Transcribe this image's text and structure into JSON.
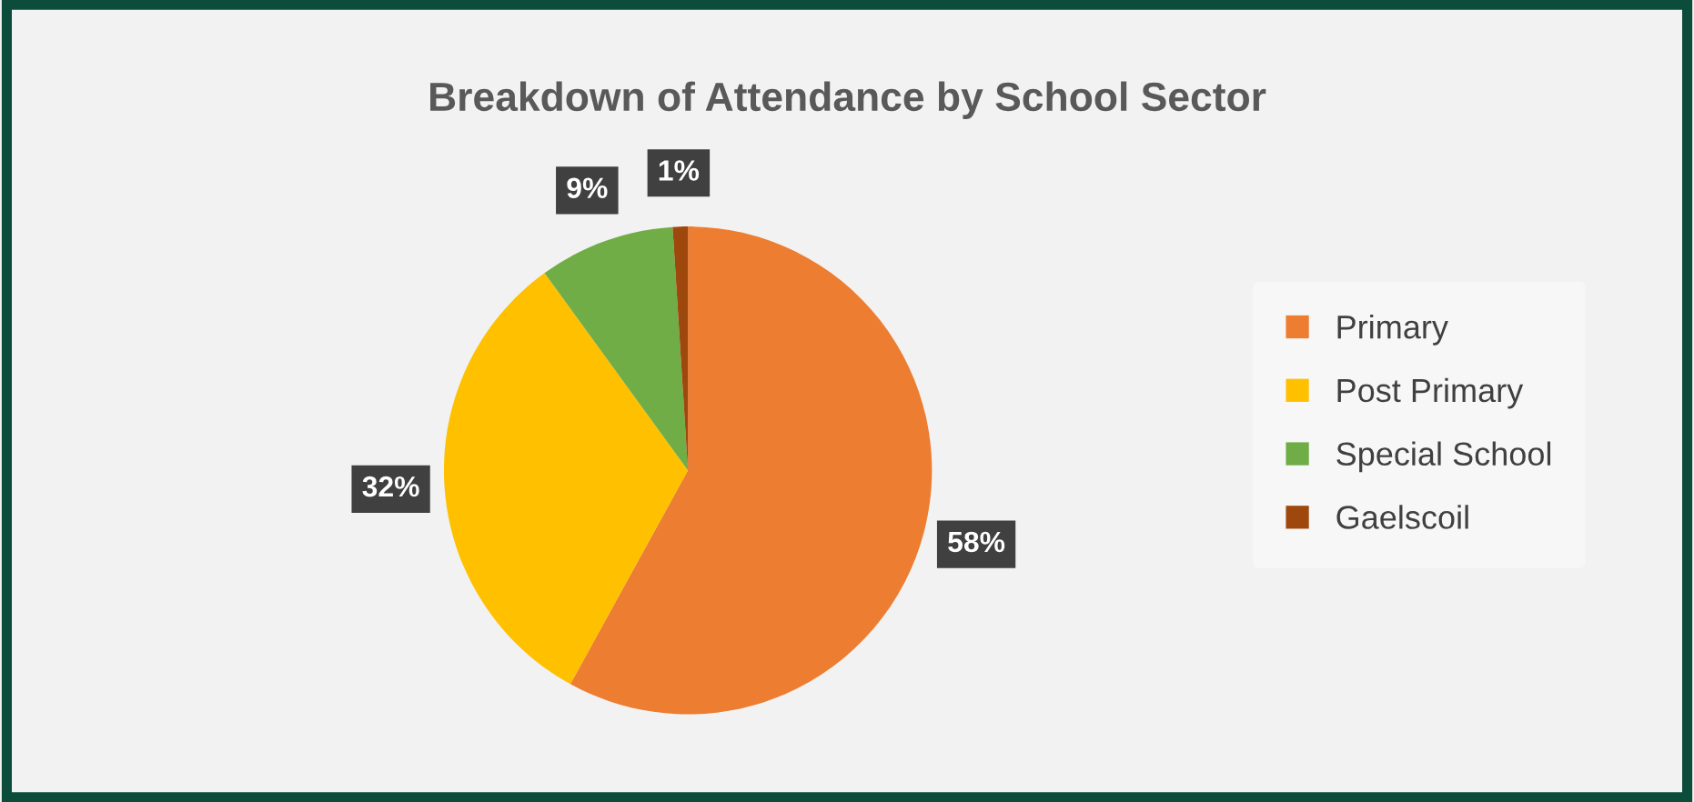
{
  "chart_data": {
    "type": "pie",
    "title": "Breakdown of Attendance by School Sector",
    "categories": [
      "Primary",
      "Post Primary",
      "Special School",
      "Gaelscoil"
    ],
    "values": [
      58,
      32,
      9,
      1
    ],
    "colors": [
      "#ed7d31",
      "#ffc000",
      "#70ad47",
      "#9e480e"
    ],
    "value_labels": [
      "58%",
      "32%",
      "9%",
      "1%"
    ],
    "legend": "right"
  }
}
